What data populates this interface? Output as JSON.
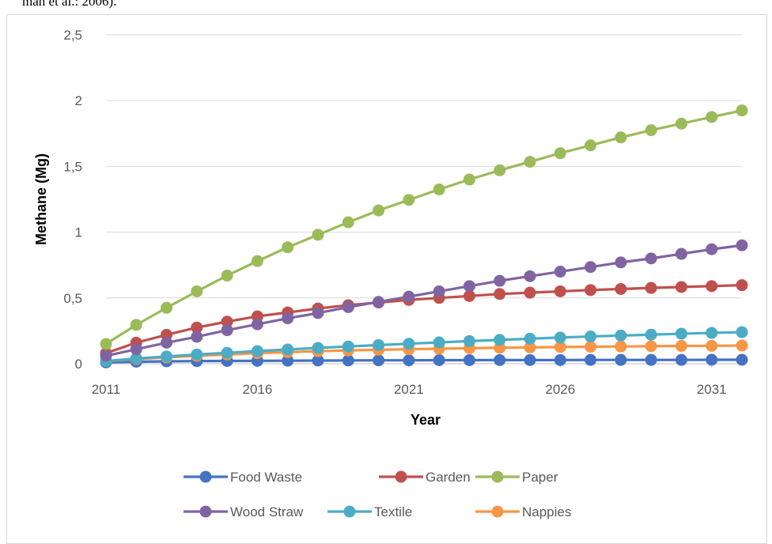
{
  "header": {
    "text": "man et al.: 2006)."
  },
  "chart_data": {
    "type": "line",
    "title": "",
    "xlabel": "Year",
    "ylabel": "Methane (Mg)",
    "xlim": [
      2011,
      2032
    ],
    "ylim": [
      0,
      2.5
    ],
    "x_ticks": [
      "2011",
      "2016",
      "2021",
      "2026",
      "2031"
    ],
    "y_ticks": [
      "0",
      "0,5",
      "1",
      "1,5",
      "2",
      "2,5"
    ],
    "grid": "horizontal",
    "legend_position": "bottom",
    "x": [
      2011,
      2012,
      2013,
      2014,
      2015,
      2016,
      2017,
      2018,
      2019,
      2020,
      2021,
      2022,
      2023,
      2024,
      2025,
      2026,
      2027,
      2028,
      2029,
      2030,
      2031,
      2032
    ],
    "series": [
      {
        "name": "Food Waste",
        "color": "#4472c4",
        "values": [
          0.01,
          0.015,
          0.018,
          0.02,
          0.021,
          0.022,
          0.023,
          0.024,
          0.025,
          0.026,
          0.026,
          0.027,
          0.027,
          0.028,
          0.028,
          0.028,
          0.029,
          0.029,
          0.029,
          0.029,
          0.03,
          0.03
        ]
      },
      {
        "name": "Garden",
        "color": "#c0504d",
        "values": [
          0.08,
          0.16,
          0.22,
          0.275,
          0.32,
          0.36,
          0.39,
          0.42,
          0.445,
          0.465,
          0.485,
          0.5,
          0.515,
          0.53,
          0.54,
          0.55,
          0.56,
          0.568,
          0.576,
          0.583,
          0.59,
          0.597
        ]
      },
      {
        "name": "Paper",
        "color": "#9bbb59",
        "values": [
          0.15,
          0.295,
          0.425,
          0.55,
          0.67,
          0.78,
          0.885,
          0.98,
          1.075,
          1.165,
          1.245,
          1.325,
          1.4,
          1.47,
          1.535,
          1.6,
          1.66,
          1.72,
          1.775,
          1.825,
          1.875,
          1.925
        ]
      },
      {
        "name": "Wood Straw",
        "color": "#8064a2",
        "values": [
          0.06,
          0.11,
          0.16,
          0.205,
          0.255,
          0.3,
          0.345,
          0.385,
          0.43,
          0.47,
          0.51,
          0.55,
          0.59,
          0.63,
          0.665,
          0.7,
          0.735,
          0.77,
          0.8,
          0.835,
          0.87,
          0.9
        ]
      },
      {
        "name": "Textile",
        "color": "#4bacc6",
        "values": [
          0.02,
          0.04,
          0.055,
          0.07,
          0.083,
          0.096,
          0.108,
          0.12,
          0.131,
          0.142,
          0.152,
          0.162,
          0.172,
          0.181,
          0.19,
          0.199,
          0.207,
          0.214,
          0.221,
          0.228,
          0.234,
          0.24
        ]
      },
      {
        "name": "Nappies",
        "color": "#f79646",
        "values": [
          0.02,
          0.035,
          0.048,
          0.06,
          0.07,
          0.08,
          0.088,
          0.095,
          0.101,
          0.106,
          0.11,
          0.114,
          0.118,
          0.121,
          0.124,
          0.127,
          0.129,
          0.131,
          0.133,
          0.135,
          0.136,
          0.138
        ]
      }
    ]
  }
}
